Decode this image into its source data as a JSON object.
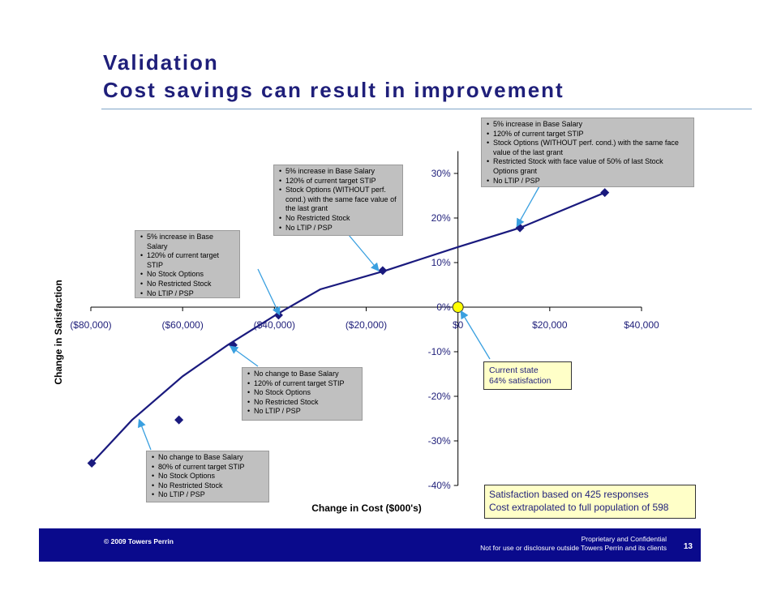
{
  "slide": {
    "title_line1": "Validation",
    "title_line2": "Cost savings can result in improvement"
  },
  "chart_data": {
    "type": "line",
    "xlabel": "Change in Cost ($000's)",
    "ylabel": "Change in Satisfaction",
    "xlim": [
      -80000,
      40000
    ],
    "ylim": [
      -40,
      35
    ],
    "x_ticks": [
      -80000,
      -60000,
      -40000,
      -20000,
      0,
      20000,
      40000
    ],
    "x_tick_labels": [
      "($80,000)",
      "($60,000)",
      "($40,000)",
      "($20,000)",
      "$0",
      "$20,000",
      "$40,000"
    ],
    "y_ticks": [
      30,
      20,
      10,
      0,
      -10,
      -20,
      -30,
      -40
    ],
    "y_tick_labels": [
      "30%",
      "20%",
      "10%",
      "0%",
      "-10%",
      "-20%",
      "-30%",
      "-40%"
    ],
    "series": [
      {
        "points": [
          {
            "x": -79800,
            "y": -35.0
          },
          {
            "x": -71000,
            "y": -25.3
          },
          {
            "x": -60000,
            "y": -15.5
          },
          {
            "x": -50200,
            "y": -8.5
          },
          {
            "x": -39800,
            "y": -1.8
          },
          {
            "x": -30000,
            "y": 4.0
          },
          {
            "x": -15800,
            "y": 8.2
          },
          {
            "x": 0,
            "y": 13.5
          },
          {
            "x": 13500,
            "y": 17.8
          },
          {
            "x": 32000,
            "y": 25.7
          }
        ],
        "markers": [
          {
            "x": -79800,
            "y": -35.0
          },
          {
            "x": -60800,
            "y": -25.3
          },
          {
            "x": -49000,
            "y": -8.5
          },
          {
            "x": -39100,
            "y": -1.8
          },
          {
            "x": -16400,
            "y": 8.2
          },
          {
            "x": 13500,
            "y": 17.8
          },
          {
            "x": 32000,
            "y": 25.7
          }
        ]
      }
    ],
    "current_state": {
      "x": 0,
      "y": 0
    }
  },
  "callouts": [
    {
      "items": [
        "5% increase in Base Salary",
        "120% of current target STIP",
        "Stock Options (WITHOUT perf. cond.) with the same face value of the last grant",
        "Restricted Stock with face value of 50% of last Stock Options grant",
        "No LTIP / PSP"
      ]
    },
    {
      "items": [
        "5% increase in Base Salary",
        "120% of current target STIP",
        "Stock Options (WITHOUT perf. cond.) with the same face value of the last grant",
        "No Restricted Stock",
        "No LTIP / PSP"
      ]
    },
    {
      "items": [
        "5% increase in Base Salary",
        "120% of current target STIP",
        "No Stock Options",
        "No Restricted Stock",
        "No LTIP / PSP"
      ]
    },
    {
      "items": [
        "No change to Base Salary",
        "120% of current target STIP",
        "No Stock Options",
        "No Restricted Stock",
        "No LTIP / PSP"
      ]
    },
    {
      "items": [
        "No change to Base Salary",
        "80% of current target STIP",
        "No Stock Options",
        "No Restricted Stock",
        "No LTIP / PSP"
      ]
    }
  ],
  "current_state_box": {
    "line1": "Current state",
    "line2": "64% satisfaction"
  },
  "note_box": {
    "line1": "Satisfaction based on 425 responses",
    "line2": "Cost extrapolated to full population of 598"
  },
  "footer": {
    "copyright": "© 2009 Towers Perrin",
    "confidential_line1": "Proprietary and Confidential",
    "confidential_line2": "Not for use or disclosure outside Towers Perrin and its clients",
    "page_number": "13"
  },
  "colors": {
    "series_line": "#1a1a7e",
    "callout_fill": "#c0c0c0",
    "highlight_fill": "#ffffc8",
    "current_marker": "#ffff00",
    "footer_bar": "#0a0a8c",
    "arrow": "#3aa0e0",
    "title": "#1f1f7a"
  }
}
